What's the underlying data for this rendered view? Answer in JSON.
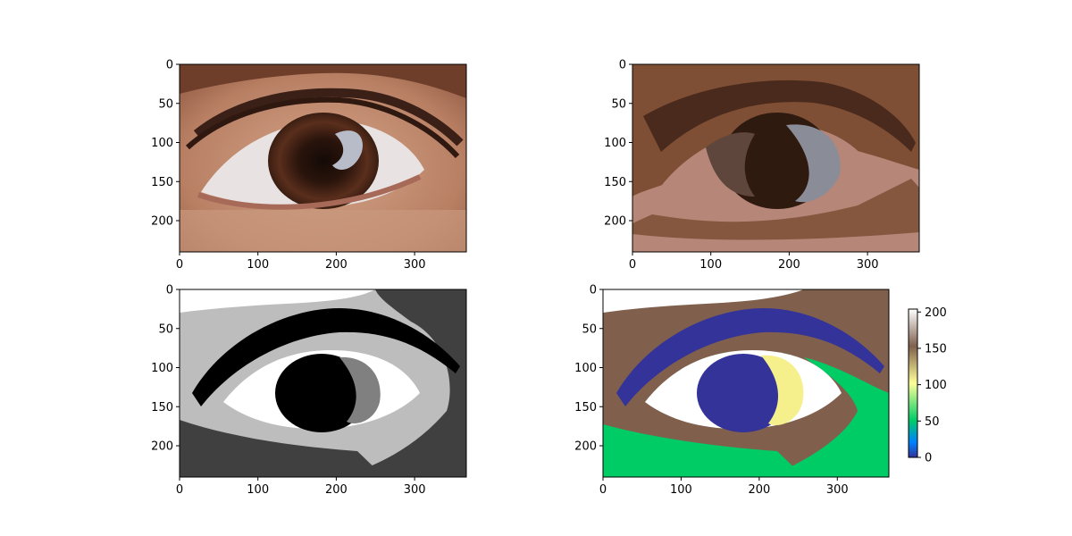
{
  "figure": {
    "background": "#ffffff"
  },
  "chart_data": [
    {
      "type": "heatmap",
      "panel": "original-photo",
      "content": "photo of a human brown eye (RGB)",
      "x_ticks": [
        0,
        100,
        200,
        300
      ],
      "y_ticks": [
        0,
        50,
        100,
        150,
        200
      ],
      "xlim": [
        0,
        366
      ],
      "ylim": [
        240,
        0
      ],
      "colors": {
        "skin": "#c08a6e",
        "skin_light": "#d7a88d",
        "iris": "#5a2e1c",
        "pupil": "#1a0d08",
        "sclera": "#e8e3e2",
        "lashes": "#2e1810",
        "highlight": "#b8bcc8"
      }
    },
    {
      "type": "heatmap",
      "panel": "color-quantized",
      "content": "eye image quantized to a small palette of cluster-mean colors",
      "x_ticks": [
        0,
        100,
        200,
        300
      ],
      "y_ticks": [
        0,
        50,
        100,
        150,
        200
      ],
      "xlim": [
        0,
        366
      ],
      "ylim": [
        240,
        0
      ],
      "colors": {
        "dark": "#2f1a10",
        "dark_brown": "#4a2a1c",
        "mid_brown": "#7e4f35",
        "light_brown": "#a06a4e",
        "pink": "#b68678",
        "grey_blue": "#8a8c98",
        "grey_brown": "#5e463c"
      }
    },
    {
      "type": "heatmap",
      "panel": "grayscale-labels",
      "content": "cluster label map shown in grayscale",
      "x_ticks": [
        0,
        100,
        200,
        300
      ],
      "y_ticks": [
        0,
        50,
        100,
        150,
        200
      ],
      "xlim": [
        0,
        366
      ],
      "ylim": [
        240,
        0
      ],
      "colors": {
        "black": "#000000",
        "dark_gray": "#404040",
        "mid_gray": "#808080",
        "light_gray": "#bdbdbd",
        "white": "#ffffff"
      }
    },
    {
      "type": "heatmap",
      "panel": "terrain-labels",
      "content": "cluster label map with terrain colormap",
      "colormap": "terrain",
      "x_ticks": [
        0,
        100,
        200,
        300
      ],
      "y_ticks": [
        0,
        50,
        100,
        150,
        200
      ],
      "xlim": [
        0,
        366
      ],
      "ylim": [
        240,
        0
      ],
      "colorbar": {
        "range": [
          0,
          204
        ],
        "ticks": [
          0,
          50,
          100,
          150,
          200
        ]
      },
      "colors": {
        "navy": "#333399",
        "green": "#00cc66",
        "yellow": "#f5f08c",
        "brown": "#80604d",
        "white": "#ffffff"
      }
    }
  ]
}
